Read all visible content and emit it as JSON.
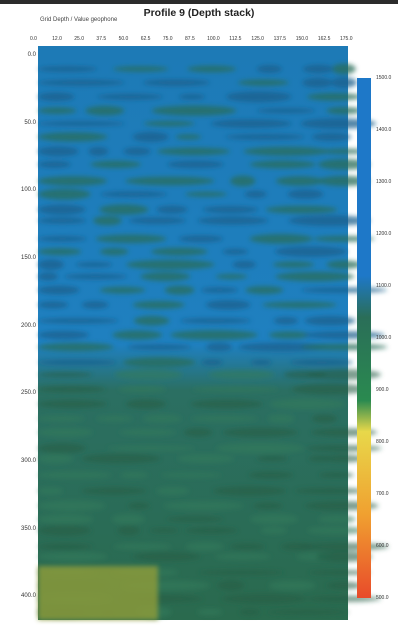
{
  "chart_data": {
    "type": "heatmap",
    "title": "Profile 9 (Depth stack)",
    "subtitle": "Grid Depth / Value geophone",
    "x_ticks": [
      "0.0",
      "12.0",
      "25.0",
      "37.5",
      "50.0",
      "62.5",
      "75.0",
      "87.5",
      "100.0",
      "112.5",
      "125.0",
      "137.5",
      "150.0",
      "162.5",
      "175.0"
    ],
    "y_ticks": [
      "0.0",
      "50.0",
      "100.0",
      "150.0",
      "200.0",
      "250.0",
      "300.0",
      "350.0",
      "400.0"
    ],
    "colorbar_ticks": [
      "1500.0",
      "1400.0",
      "1300.0",
      "1200.0",
      "1100.0",
      "1000.0",
      "900.0",
      "800.0",
      "700.0",
      "600.0",
      "500.0"
    ],
    "grid": false,
    "legend": "colorbar right",
    "colors": {
      "high": "#1e78c8",
      "mid": "#2a6e58",
      "low": "#e84a2a",
      "band_yellow": "#e8d84a",
      "band_orange": "#f0a030"
    },
    "field": {
      "upper_zone_value": 1450,
      "upper_zone_bands_value": 1250,
      "middle_zone_value": 1050,
      "lower_zone_value": 950,
      "bottom_left_patch_value": 750
    }
  }
}
